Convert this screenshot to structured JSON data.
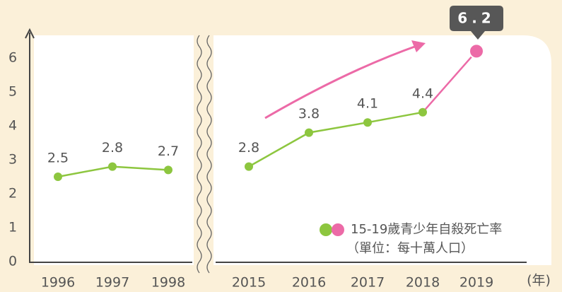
{
  "chart_data": {
    "type": "line",
    "categories": [
      "1996",
      "1997",
      "1998",
      null,
      "2015",
      "2016",
      "2017",
      "2018",
      "2019"
    ],
    "series": [
      {
        "name": "15-19歲青少年自殺死亡率",
        "color": "#8dc63f",
        "highlight_color": "#ec6aa7",
        "values": [
          2.5,
          2.8,
          2.7,
          null,
          2.8,
          3.8,
          4.1,
          4.4,
          6.2
        ]
      }
    ],
    "unit": "（單位：每十萬人口）",
    "x_label": "(年)",
    "ylim": [
      0,
      6.8
    ],
    "yticks": [
      0,
      1,
      2,
      3,
      4,
      5,
      6
    ]
  }
}
